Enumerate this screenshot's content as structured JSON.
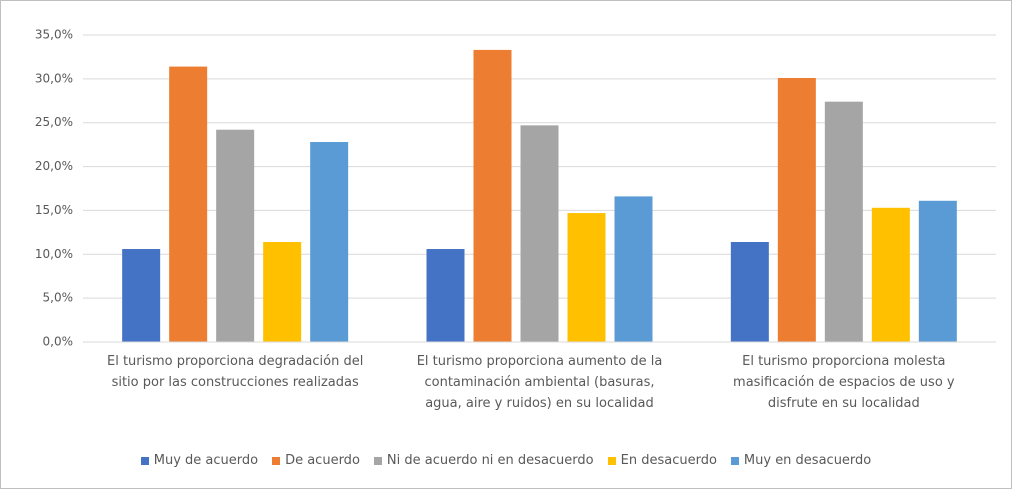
{
  "chart_data": {
    "type": "bar",
    "categories": [
      "El turismo proporciona degradación del sitio por las construcciones realizadas",
      "El turismo proporciona aumento de la contaminación ambiental (basuras, agua, aire y ruidos) en su localidad",
      "El turismo proporciona molesta masificación de espacios de uso y disfrute en su localidad"
    ],
    "series": [
      {
        "name": "Muy de acuerdo",
        "color": "#4472c4",
        "values": [
          10.6,
          10.6,
          11.4
        ]
      },
      {
        "name": "De acuerdo",
        "color": "#ed7d31",
        "values": [
          31.4,
          33.3,
          30.1
        ]
      },
      {
        "name": "Ni de acuerdo ni en desacuerdo",
        "color": "#a5a5a5",
        "values": [
          24.2,
          24.7,
          27.4
        ]
      },
      {
        "name": "En desacuerdo",
        "color": "#ffc000",
        "values": [
          11.4,
          14.7,
          15.3
        ]
      },
      {
        "name": "Muy en desacuerdo",
        "color": "#5b9bd5",
        "values": [
          22.8,
          16.6,
          16.1
        ]
      }
    ],
    "ylim": [
      0,
      35
    ],
    "yticks": [
      {
        "value": 0,
        "label": "0,0%"
      },
      {
        "value": 5,
        "label": "5,0%"
      },
      {
        "value": 10,
        "label": "10,0%"
      },
      {
        "value": 15,
        "label": "15,0%"
      },
      {
        "value": 20,
        "label": "20,0%"
      },
      {
        "value": 25,
        "label": "25,0%"
      },
      {
        "value": 30,
        "label": "30,0%"
      },
      {
        "value": 35,
        "label": "35,0%"
      }
    ],
    "grid": true,
    "legend": "bottom"
  }
}
